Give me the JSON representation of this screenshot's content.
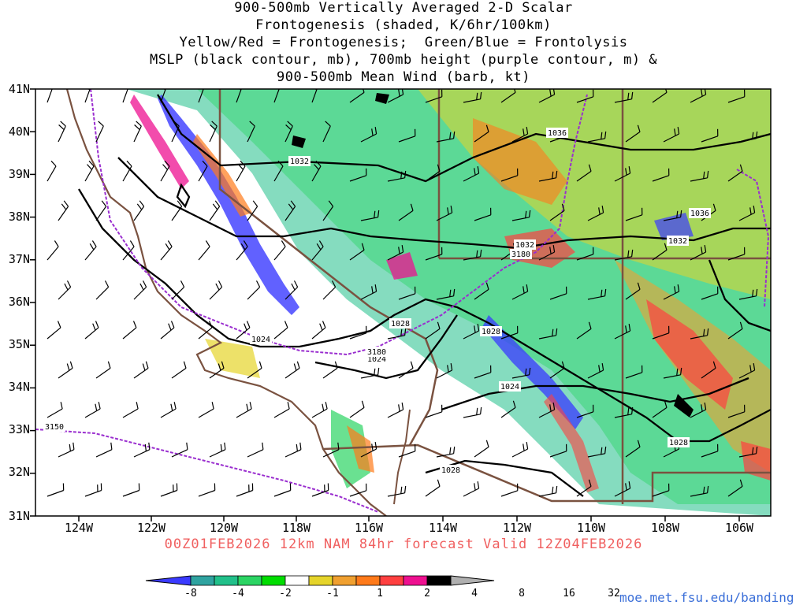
{
  "title_lines": [
    "900-500mb Vertically Averaged 2-D Scalar",
    "Frontogenesis (shaded, K/6hr/100km)",
    "Yellow/Red = Frontogenesis;  Green/Blue = Frontolysis",
    "MSLP (black contour, mb), 700mb height (purple contour, m) &",
    "900-500mb Mean Wind (barb, kt)"
  ],
  "lat_labels": [
    "41N",
    "40N",
    "39N",
    "38N",
    "37N",
    "36N",
    "35N",
    "34N",
    "33N",
    "32N",
    "31N"
  ],
  "lon_labels": [
    "124W",
    "122W",
    "120W",
    "118W",
    "116W",
    "114W",
    "112W",
    "110W",
    "108W",
    "106W"
  ],
  "valid_text": "00Z01FEB2026 12km NAM 84hr forecast Valid 12Z04FEB2026",
  "colorbar": {
    "labels": [
      "-8",
      "-4",
      "-2",
      "-1",
      "1",
      "2",
      "4",
      "8",
      "16",
      "32"
    ],
    "colors": [
      "#3a3aff",
      "#2fa3a0",
      "#21c08a",
      "#2bd463",
      "#00dd00",
      "#ffffff",
      "#e5d42a",
      "#f0a030",
      "#ff7a1a",
      "#ff4040",
      "#ee1090",
      "#000000",
      "#b0b0b0"
    ]
  },
  "contour_labels": {
    "mslp": [
      "1036",
      "1032",
      "1036",
      "1032",
      "1032",
      "1028",
      "1028",
      "1024",
      "1024",
      "1024",
      "1028",
      "1028"
    ],
    "height": [
      "3180",
      "3180",
      "3150"
    ]
  },
  "site_text": "moe.met.fsu.edu/banding"
}
